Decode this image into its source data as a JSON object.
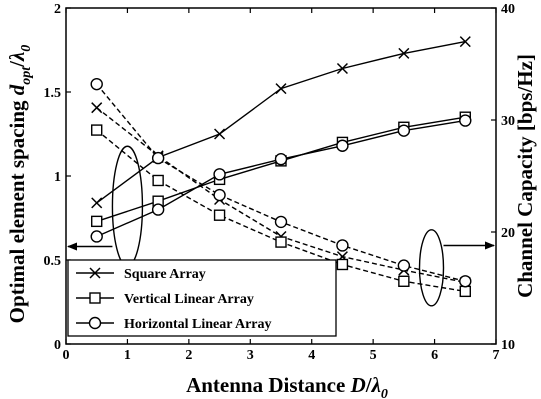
{
  "chart_data": {
    "type": "line",
    "x": [
      0.5,
      1.5,
      2.5,
      3.5,
      4.5,
      5.5,
      6.5
    ],
    "xlim": [
      0,
      7
    ],
    "xticks": [
      "0",
      "1",
      "2",
      "3",
      "4",
      "5",
      "6",
      "7"
    ],
    "xlabel": "Antenna Distance D/λ0",
    "left_axis": {
      "label": "Optimal element spacing dopt/λ0",
      "ylim": [
        0,
        2
      ],
      "ticks": [
        "0",
        "0.5",
        "1",
        "1.5",
        "2"
      ]
    },
    "right_axis": {
      "label": "Channel Capacity [bps/Hz]",
      "ylim": [
        10,
        40
      ],
      "ticks": [
        "10",
        "20",
        "30",
        "40"
      ]
    },
    "series": [
      {
        "name": "Square Array",
        "marker": "x",
        "axis": "left",
        "style": "solid",
        "values": [
          0.84,
          1.11,
          1.25,
          1.52,
          1.64,
          1.73,
          1.8
        ]
      },
      {
        "name": "Vertical Linear Array",
        "marker": "square",
        "axis": "left",
        "style": "solid",
        "values": [
          0.73,
          0.85,
          0.98,
          1.09,
          1.2,
          1.29,
          1.35
        ]
      },
      {
        "name": "Horizontal Linear Array",
        "marker": "circle",
        "axis": "left",
        "style": "solid",
        "values": [
          0.64,
          0.8,
          1.01,
          1.1,
          1.18,
          1.27,
          1.33
        ]
      },
      {
        "name": "Square Array",
        "marker": "x",
        "axis": "right",
        "style": "dashed",
        "values": [
          31.1,
          26.8,
          22.9,
          19.6,
          17.8,
          16.6,
          15.5
        ]
      },
      {
        "name": "Vertical Linear Array",
        "marker": "square",
        "axis": "right",
        "style": "dashed",
        "values": [
          29.1,
          24.6,
          21.5,
          19.1,
          17.1,
          15.6,
          14.7
        ]
      },
      {
        "name": "Horizontal Linear Array",
        "marker": "circle",
        "axis": "right",
        "style": "dashed",
        "values": [
          33.2,
          26.6,
          23.3,
          20.9,
          18.8,
          17.0,
          15.6
        ]
      }
    ],
    "legend": {
      "position": "bottom-left",
      "entries": [
        {
          "name": "Square Array",
          "marker": "x"
        },
        {
          "name": "Vertical Linear Array",
          "marker": "square"
        },
        {
          "name": "Horizontal Linear Array",
          "marker": "circle"
        }
      ]
    },
    "grid": false
  }
}
